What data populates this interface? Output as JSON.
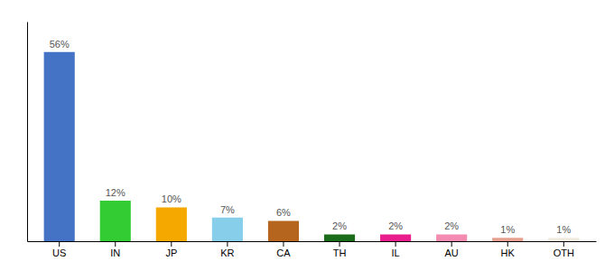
{
  "chart_data": {
    "type": "bar",
    "categories": [
      "US",
      "IN",
      "JP",
      "KR",
      "CA",
      "TH",
      "IL",
      "AU",
      "HK",
      "OTH"
    ],
    "values": [
      56,
      12,
      10,
      7,
      6,
      2,
      2,
      2,
      1,
      1
    ],
    "value_labels": [
      "56%",
      "12%",
      "10%",
      "7%",
      "6%",
      "2%",
      "2%",
      "2%",
      "1%",
      "1%"
    ],
    "colors": [
      "#4472c4",
      "#33cc33",
      "#f5a800",
      "#87ceeb",
      "#b5651d",
      "#1a6b1a",
      "#e91e8c",
      "#f48cb1",
      "#e8a090",
      "#f0ede0"
    ],
    "ylim": [
      0,
      65
    ],
    "data_labels": true,
    "grid": false,
    "tick_labels": "x"
  }
}
